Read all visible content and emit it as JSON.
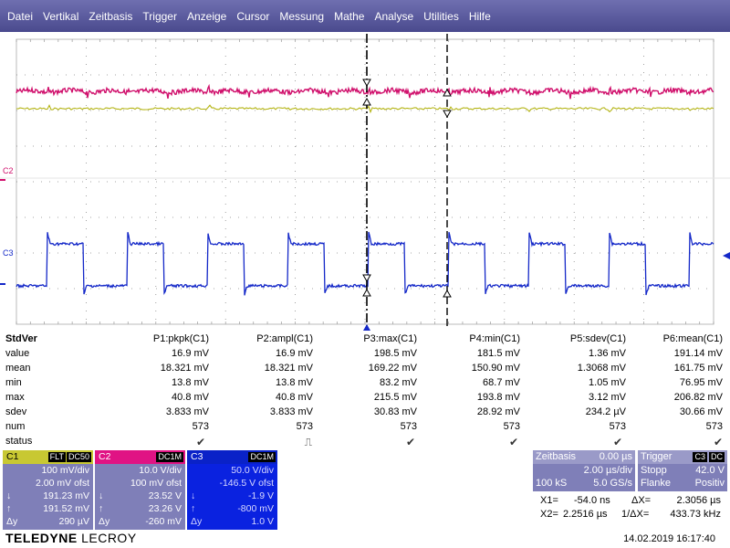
{
  "menu": [
    "Datei",
    "Vertikal",
    "Zeitbasis",
    "Trigger",
    "Anzeige",
    "Cursor",
    "Messung",
    "Mathe",
    "Analyse",
    "Utilities",
    "Hilfe"
  ],
  "plot": {
    "labels": {
      "c2": "C2",
      "c3": "C3"
    },
    "colors": {
      "c1": "#b4b414",
      "c2": "#d0106c",
      "c3": "#1428c8",
      "grid": "#888888"
    }
  },
  "measurements": {
    "title": "StdVer",
    "columns": [
      "P1:pkpk(C1)",
      "P2:ampl(C1)",
      "P3:max(C1)",
      "P4:min(C1)",
      "P5:sdev(C1)",
      "P6:mean(C1)"
    ],
    "rows": [
      {
        "label": "value",
        "cells": [
          "16.9 mV",
          "16.9 mV",
          "198.5 mV",
          "181.5 mV",
          "1.36 mV",
          "191.14 mV"
        ]
      },
      {
        "label": "mean",
        "cells": [
          "18.321 mV",
          "18.321 mV",
          "169.22 mV",
          "150.90 mV",
          "1.3068 mV",
          "161.75 mV"
        ]
      },
      {
        "label": "min",
        "cells": [
          "13.8 mV",
          "13.8 mV",
          "83.2 mV",
          "68.7 mV",
          "1.05 mV",
          "76.95 mV"
        ]
      },
      {
        "label": "max",
        "cells": [
          "40.8 mV",
          "40.8 mV",
          "215.5 mV",
          "193.8 mV",
          "3.12 mV",
          "206.82 mV"
        ]
      },
      {
        "label": "sdev",
        "cells": [
          "3.833 mV",
          "3.833 mV",
          "30.83 mV",
          "28.92 mV",
          "234.2 µV",
          "30.66 mV"
        ]
      },
      {
        "label": "num",
        "cells": [
          "573",
          "573",
          "573",
          "573",
          "573",
          "573"
        ]
      },
      {
        "label": "status",
        "cells": [
          "✔",
          "⎍",
          "✔",
          "✔",
          "✔",
          "✔"
        ]
      }
    ]
  },
  "channels": {
    "c1": {
      "name": "C1",
      "tags": [
        "FLT",
        "DC50"
      ],
      "lines": [
        {
          "l": "",
          "r": "100 mV/div"
        },
        {
          "l": "",
          "r": "2.00 mV ofst"
        },
        {
          "l": "↓",
          "r": "191.23 mV"
        },
        {
          "l": "↑",
          "r": "191.52 mV"
        },
        {
          "l": "Δy",
          "r": "290 µV"
        }
      ]
    },
    "c2": {
      "name": "C2",
      "tags": [
        "DC1M"
      ],
      "lines": [
        {
          "l": "",
          "r": "10.0 V/div"
        },
        {
          "l": "",
          "r": "100 mV ofst"
        },
        {
          "l": "↓",
          "r": "23.52 V"
        },
        {
          "l": "↑",
          "r": "23.26 V"
        },
        {
          "l": "Δy",
          "r": "-260 mV"
        }
      ]
    },
    "c3": {
      "name": "C3",
      "tags": [
        "DC1M"
      ],
      "lines": [
        {
          "l": "",
          "r": "50.0 V/div"
        },
        {
          "l": "",
          "r": "-146.5 V ofst"
        },
        {
          "l": "↓",
          "r": "-1.9 V"
        },
        {
          "l": "↑",
          "r": "-800 mV"
        },
        {
          "l": "Δy",
          "r": "1.0 V"
        }
      ]
    }
  },
  "timebase": {
    "title": "Zeitbasis",
    "delay": "0.00 µs",
    "per_div": "2.00 µs/div",
    "samples": "100 kS",
    "rate": "5.0 GS/s"
  },
  "trigger": {
    "title": "Trigger",
    "source": "C3",
    "coupling": "DC",
    "mode": "Stopp",
    "level": "42.0 V",
    "type": "Flanke",
    "slope": "Positiv"
  },
  "cursors": {
    "x1_label": "X1=",
    "x1": "-54.0 ns",
    "dx_label": "ΔX=",
    "dx": "2.3056 µs",
    "x2_label": "X2=",
    "x2": "2.2516 µs",
    "inv_label": "1/ΔX=",
    "inv": "433.73 kHz"
  },
  "brand": {
    "main": "TELEDYNE",
    "sub": "LECROY"
  },
  "datetime": "14.02.2019 16:17:40"
}
